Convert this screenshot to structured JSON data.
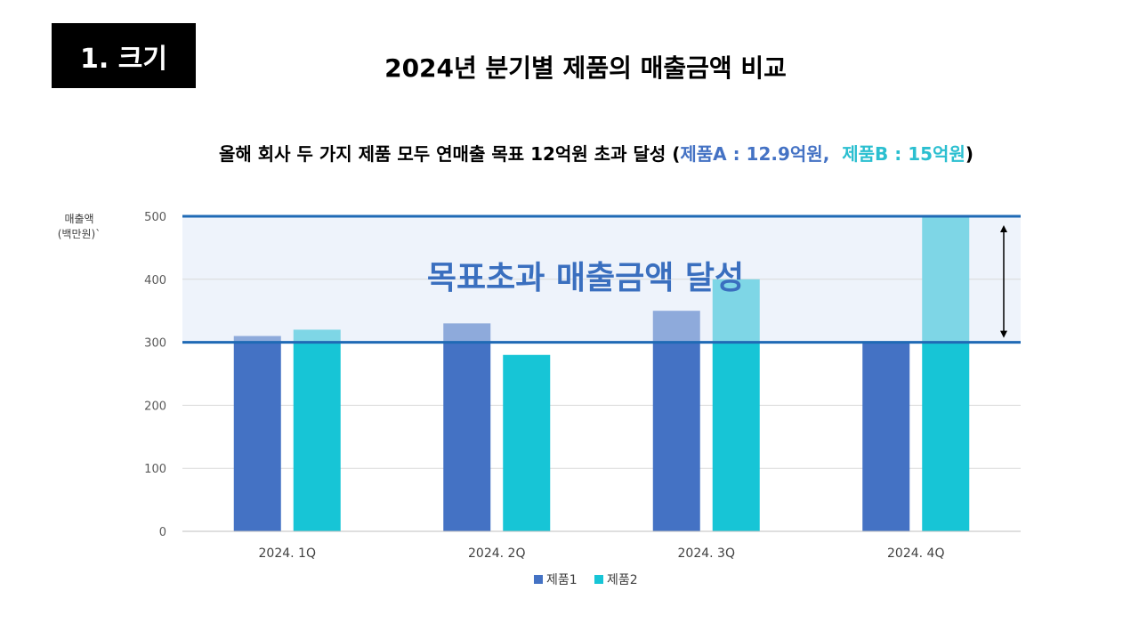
{
  "section": {
    "label": "1. 크기"
  },
  "header": {
    "title": "2024년 분기별 제품의 매출금액 비교"
  },
  "subtitle": {
    "prefix": "올해 회사 두 가지 제품 모두 연매출 목표 12억원 초과 달성 (",
    "product_a": "제품A : 12.9억원,",
    "product_b": "제품B : 15억원",
    "suffix": ")"
  },
  "colors": {
    "series1": "#4472c4",
    "series1_light": "#8eaadb",
    "series2": "#17c5d6",
    "series2_light": "#7ed6e6",
    "target_line": "#1f6ab5",
    "band": "#eef3fb",
    "grid": "#d9d9d9",
    "annotation": "#3a6fbf"
  },
  "chart_data": {
    "type": "bar",
    "ylabel": "매출액\n(백만원)`",
    "ylim": [
      0,
      500
    ],
    "yticks": [
      0,
      100,
      200,
      300,
      400,
      500
    ],
    "categories": [
      "2024. 1Q",
      "2024. 2Q",
      "2024. 3Q",
      "2024. 4Q"
    ],
    "series": [
      {
        "name": "제품1",
        "values": [
          310,
          330,
          350,
          300
        ]
      },
      {
        "name": "제품2",
        "values": [
          320,
          280,
          400,
          500
        ]
      }
    ],
    "target_range": [
      300,
      500
    ],
    "annotation": "목표초과 매출금액 달성",
    "legend_position": "bottom"
  }
}
